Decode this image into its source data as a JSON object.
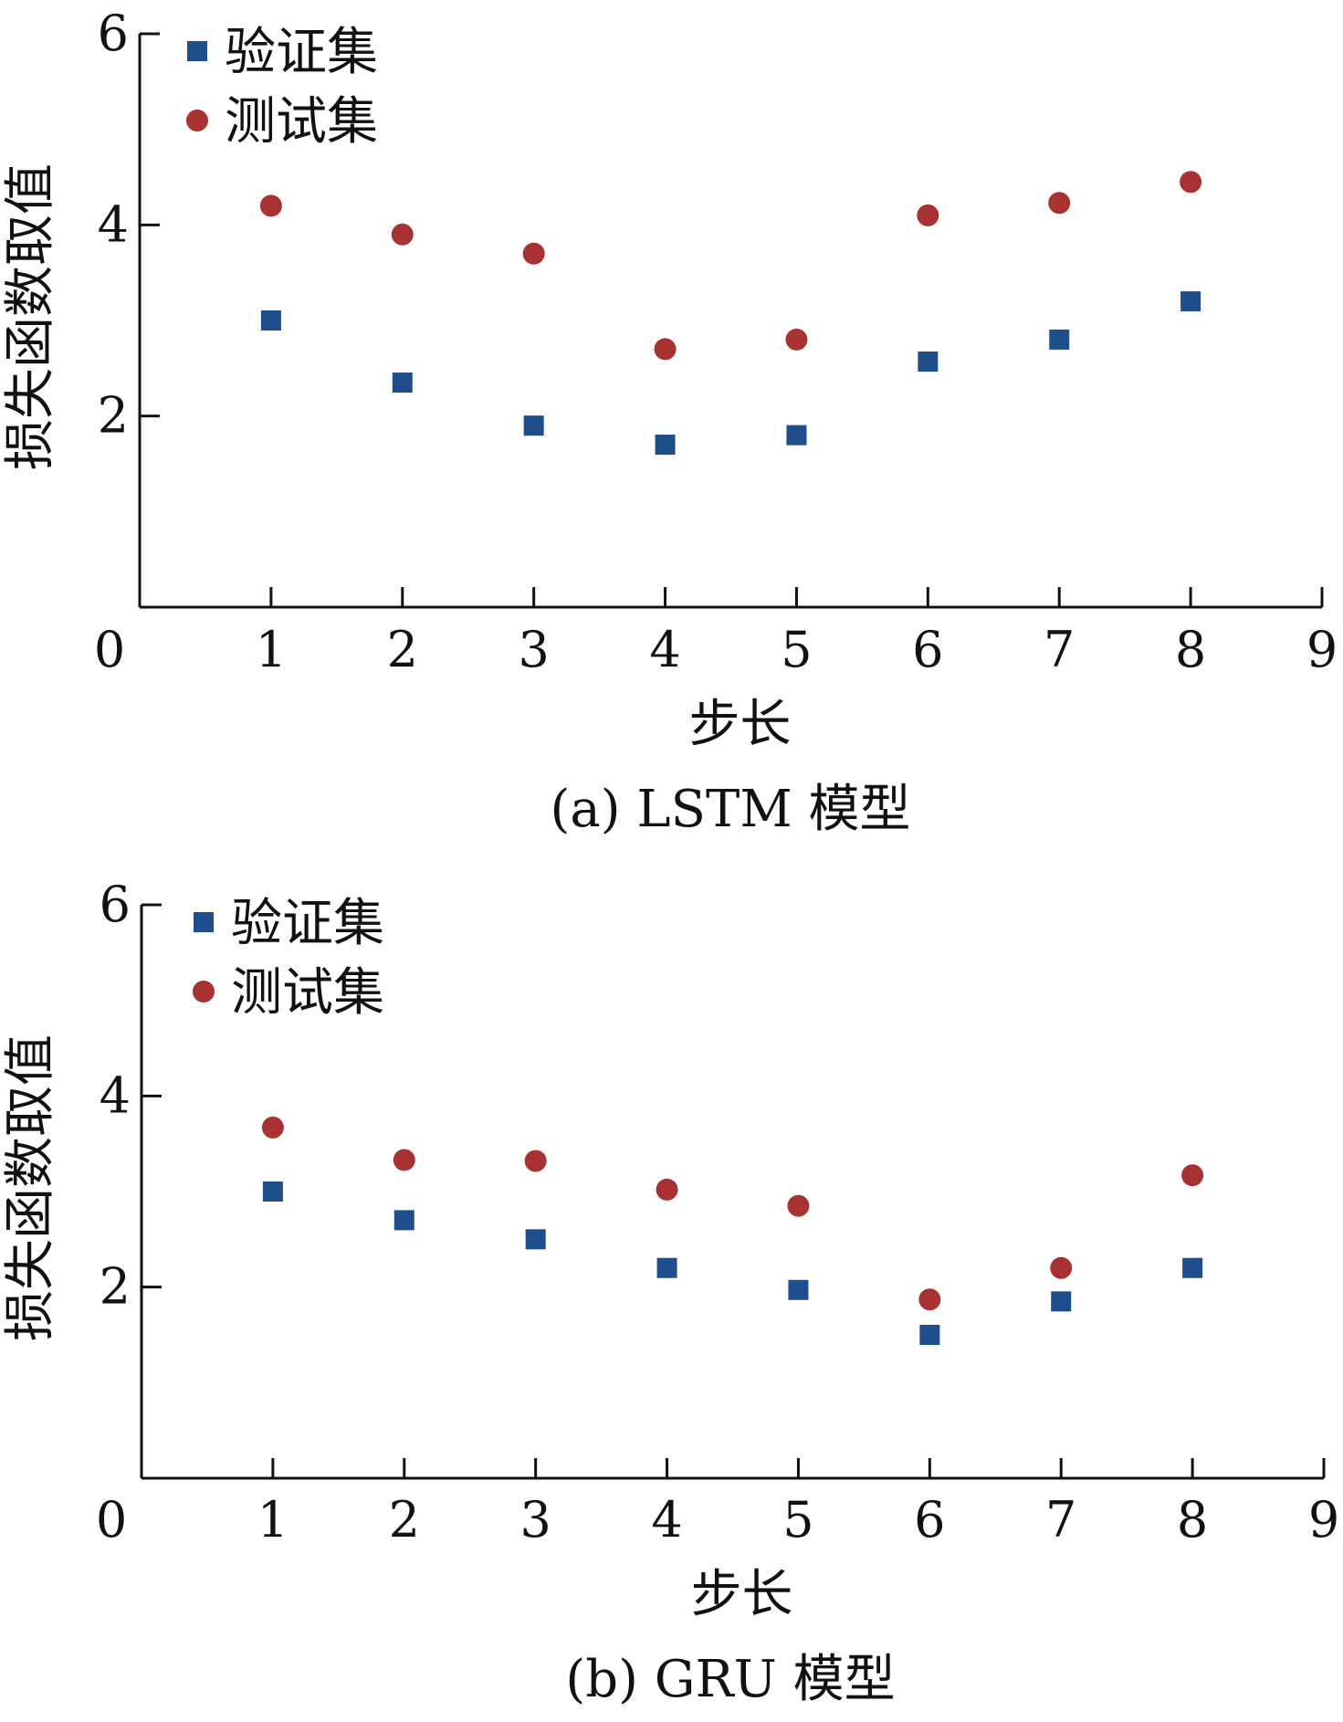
{
  "colors": {
    "validation": "#1f4e8c",
    "test": "#a83232",
    "axis": "#111111"
  },
  "chart_data": [
    {
      "type": "scatter",
      "caption": "(a)  LSTM 模型",
      "xlabel": "步长",
      "ylabel": "损失函数取值",
      "xlim": [
        0,
        9
      ],
      "ylim": [
        0,
        6
      ],
      "x_ticks": [
        "0",
        "1",
        "2",
        "3",
        "4",
        "5",
        "6",
        "7",
        "8",
        "9"
      ],
      "y_ticks": [
        "2",
        "4",
        "6"
      ],
      "legend_position": "top-left",
      "grid": false,
      "x": [
        1,
        2,
        3,
        4,
        5,
        6,
        7,
        8
      ],
      "series": [
        {
          "name": "验证集",
          "marker": "square",
          "values": [
            3.0,
            2.35,
            1.9,
            1.7,
            1.8,
            2.57,
            2.8,
            3.2
          ]
        },
        {
          "name": "测试集",
          "marker": "circle",
          "values": [
            4.2,
            3.9,
            3.7,
            2.7,
            2.8,
            4.1,
            4.23,
            4.45
          ]
        }
      ]
    },
    {
      "type": "scatter",
      "caption": "(b)  GRU 模型",
      "xlabel": "步长",
      "ylabel": "损失函数取值",
      "xlim": [
        0,
        9
      ],
      "ylim": [
        0,
        6
      ],
      "x_ticks": [
        "0",
        "1",
        "2",
        "3",
        "4",
        "5",
        "6",
        "7",
        "8",
        "9"
      ],
      "y_ticks": [
        "2",
        "4",
        "6"
      ],
      "legend_position": "top-left",
      "grid": false,
      "x": [
        1,
        2,
        3,
        4,
        5,
        6,
        7,
        8
      ],
      "series": [
        {
          "name": "验证集",
          "marker": "square",
          "values": [
            3.0,
            2.7,
            2.5,
            2.2,
            1.97,
            1.5,
            1.85,
            2.2
          ]
        },
        {
          "name": "测试集",
          "marker": "circle",
          "values": [
            3.67,
            3.33,
            3.32,
            3.02,
            2.85,
            1.87,
            2.2,
            3.17
          ]
        }
      ]
    }
  ]
}
